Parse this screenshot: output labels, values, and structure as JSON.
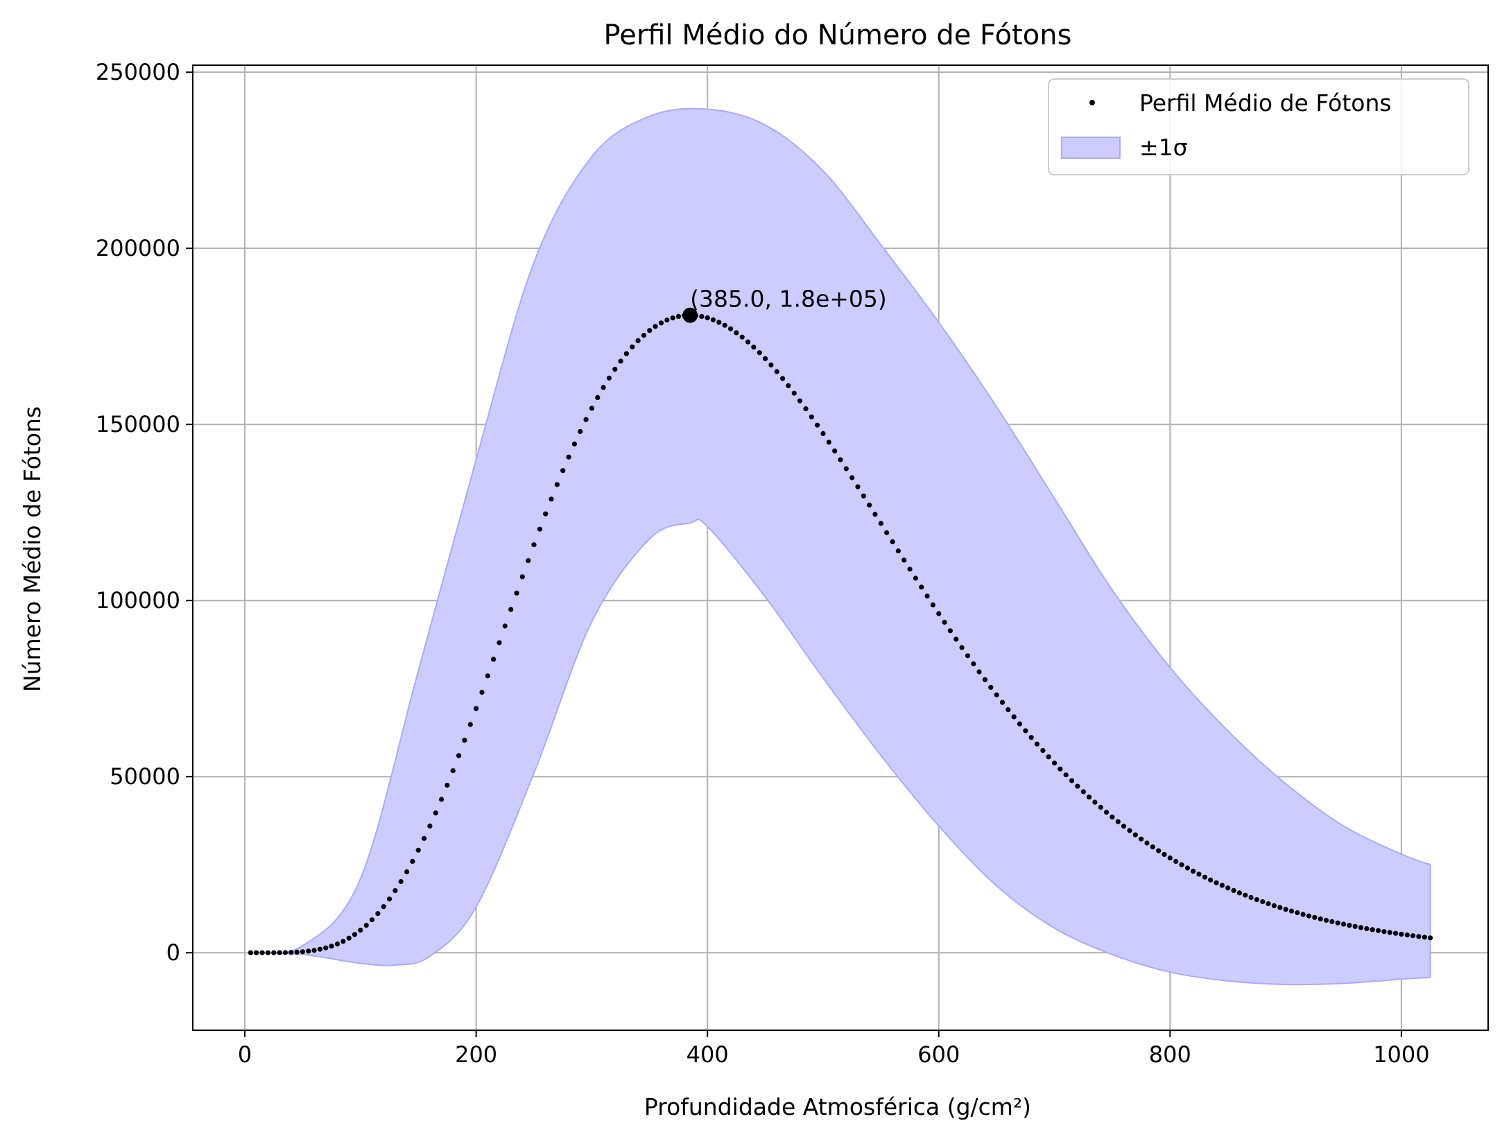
{
  "chart_data": {
    "type": "scatter",
    "title": "Perfil Médio do Número de Fótons",
    "xlabel": "Profundidade Atmosférica (g/cm²)",
    "ylabel": "Número Médio de Fótons",
    "xlim": [
      -45,
      1075
    ],
    "ylim": [
      -22000,
      252000
    ],
    "xticks": [
      0,
      200,
      400,
      600,
      800,
      1000
    ],
    "yticks": [
      0,
      50000,
      100000,
      150000,
      200000,
      250000
    ],
    "grid": true,
    "legend_position": "top-right",
    "colors": {
      "points": "#000000",
      "band_fill": "#ccccff",
      "band_edge": "#aaaaff"
    },
    "series": [
      {
        "name": "Perfil Médio de Fótons",
        "kind": "points",
        "x_start": 5,
        "x_end": 1025,
        "x_step": 5,
        "peak_x": 385,
        "peak_y": 181000,
        "profile": "gaisser-hillas",
        "shape": {
          "x0": 0,
          "lambda": 70
        }
      },
      {
        "name": "±1σ",
        "kind": "band",
        "upper": [
          [
            5,
            0
          ],
          [
            50,
            2000
          ],
          [
            100,
            21000
          ],
          [
            150,
            80000
          ],
          [
            200,
            140000
          ],
          [
            250,
            196000
          ],
          [
            300,
            226000
          ],
          [
            350,
            237500
          ],
          [
            400,
            239500
          ],
          [
            450,
            235000
          ],
          [
            500,
            222000
          ],
          [
            550,
            201000
          ],
          [
            600,
            179000
          ],
          [
            650,
            155000
          ],
          [
            700,
            129000
          ],
          [
            750,
            103000
          ],
          [
            800,
            81000
          ],
          [
            850,
            63000
          ],
          [
            900,
            48000
          ],
          [
            950,
            36000
          ],
          [
            1000,
            28000
          ],
          [
            1025,
            25000
          ]
        ],
        "lower": [
          [
            5,
            0
          ],
          [
            50,
            -500
          ],
          [
            100,
            -3000
          ],
          [
            130,
            -3500
          ],
          [
            160,
            -1000
          ],
          [
            200,
            13000
          ],
          [
            250,
            51000
          ],
          [
            300,
            94000
          ],
          [
            350,
            117500
          ],
          [
            385,
            122000
          ],
          [
            400,
            121000
          ],
          [
            450,
            101000
          ],
          [
            500,
            78000
          ],
          [
            550,
            56000
          ],
          [
            600,
            36000
          ],
          [
            650,
            19000
          ],
          [
            700,
            7000
          ],
          [
            750,
            -500
          ],
          [
            800,
            -5500
          ],
          [
            850,
            -8000
          ],
          [
            900,
            -9000
          ],
          [
            950,
            -8700
          ],
          [
            1000,
            -7500
          ],
          [
            1025,
            -7000
          ]
        ]
      }
    ],
    "annotation": {
      "text": "(385.0, 1.8e+05)",
      "x": 385,
      "y": 181000
    }
  }
}
